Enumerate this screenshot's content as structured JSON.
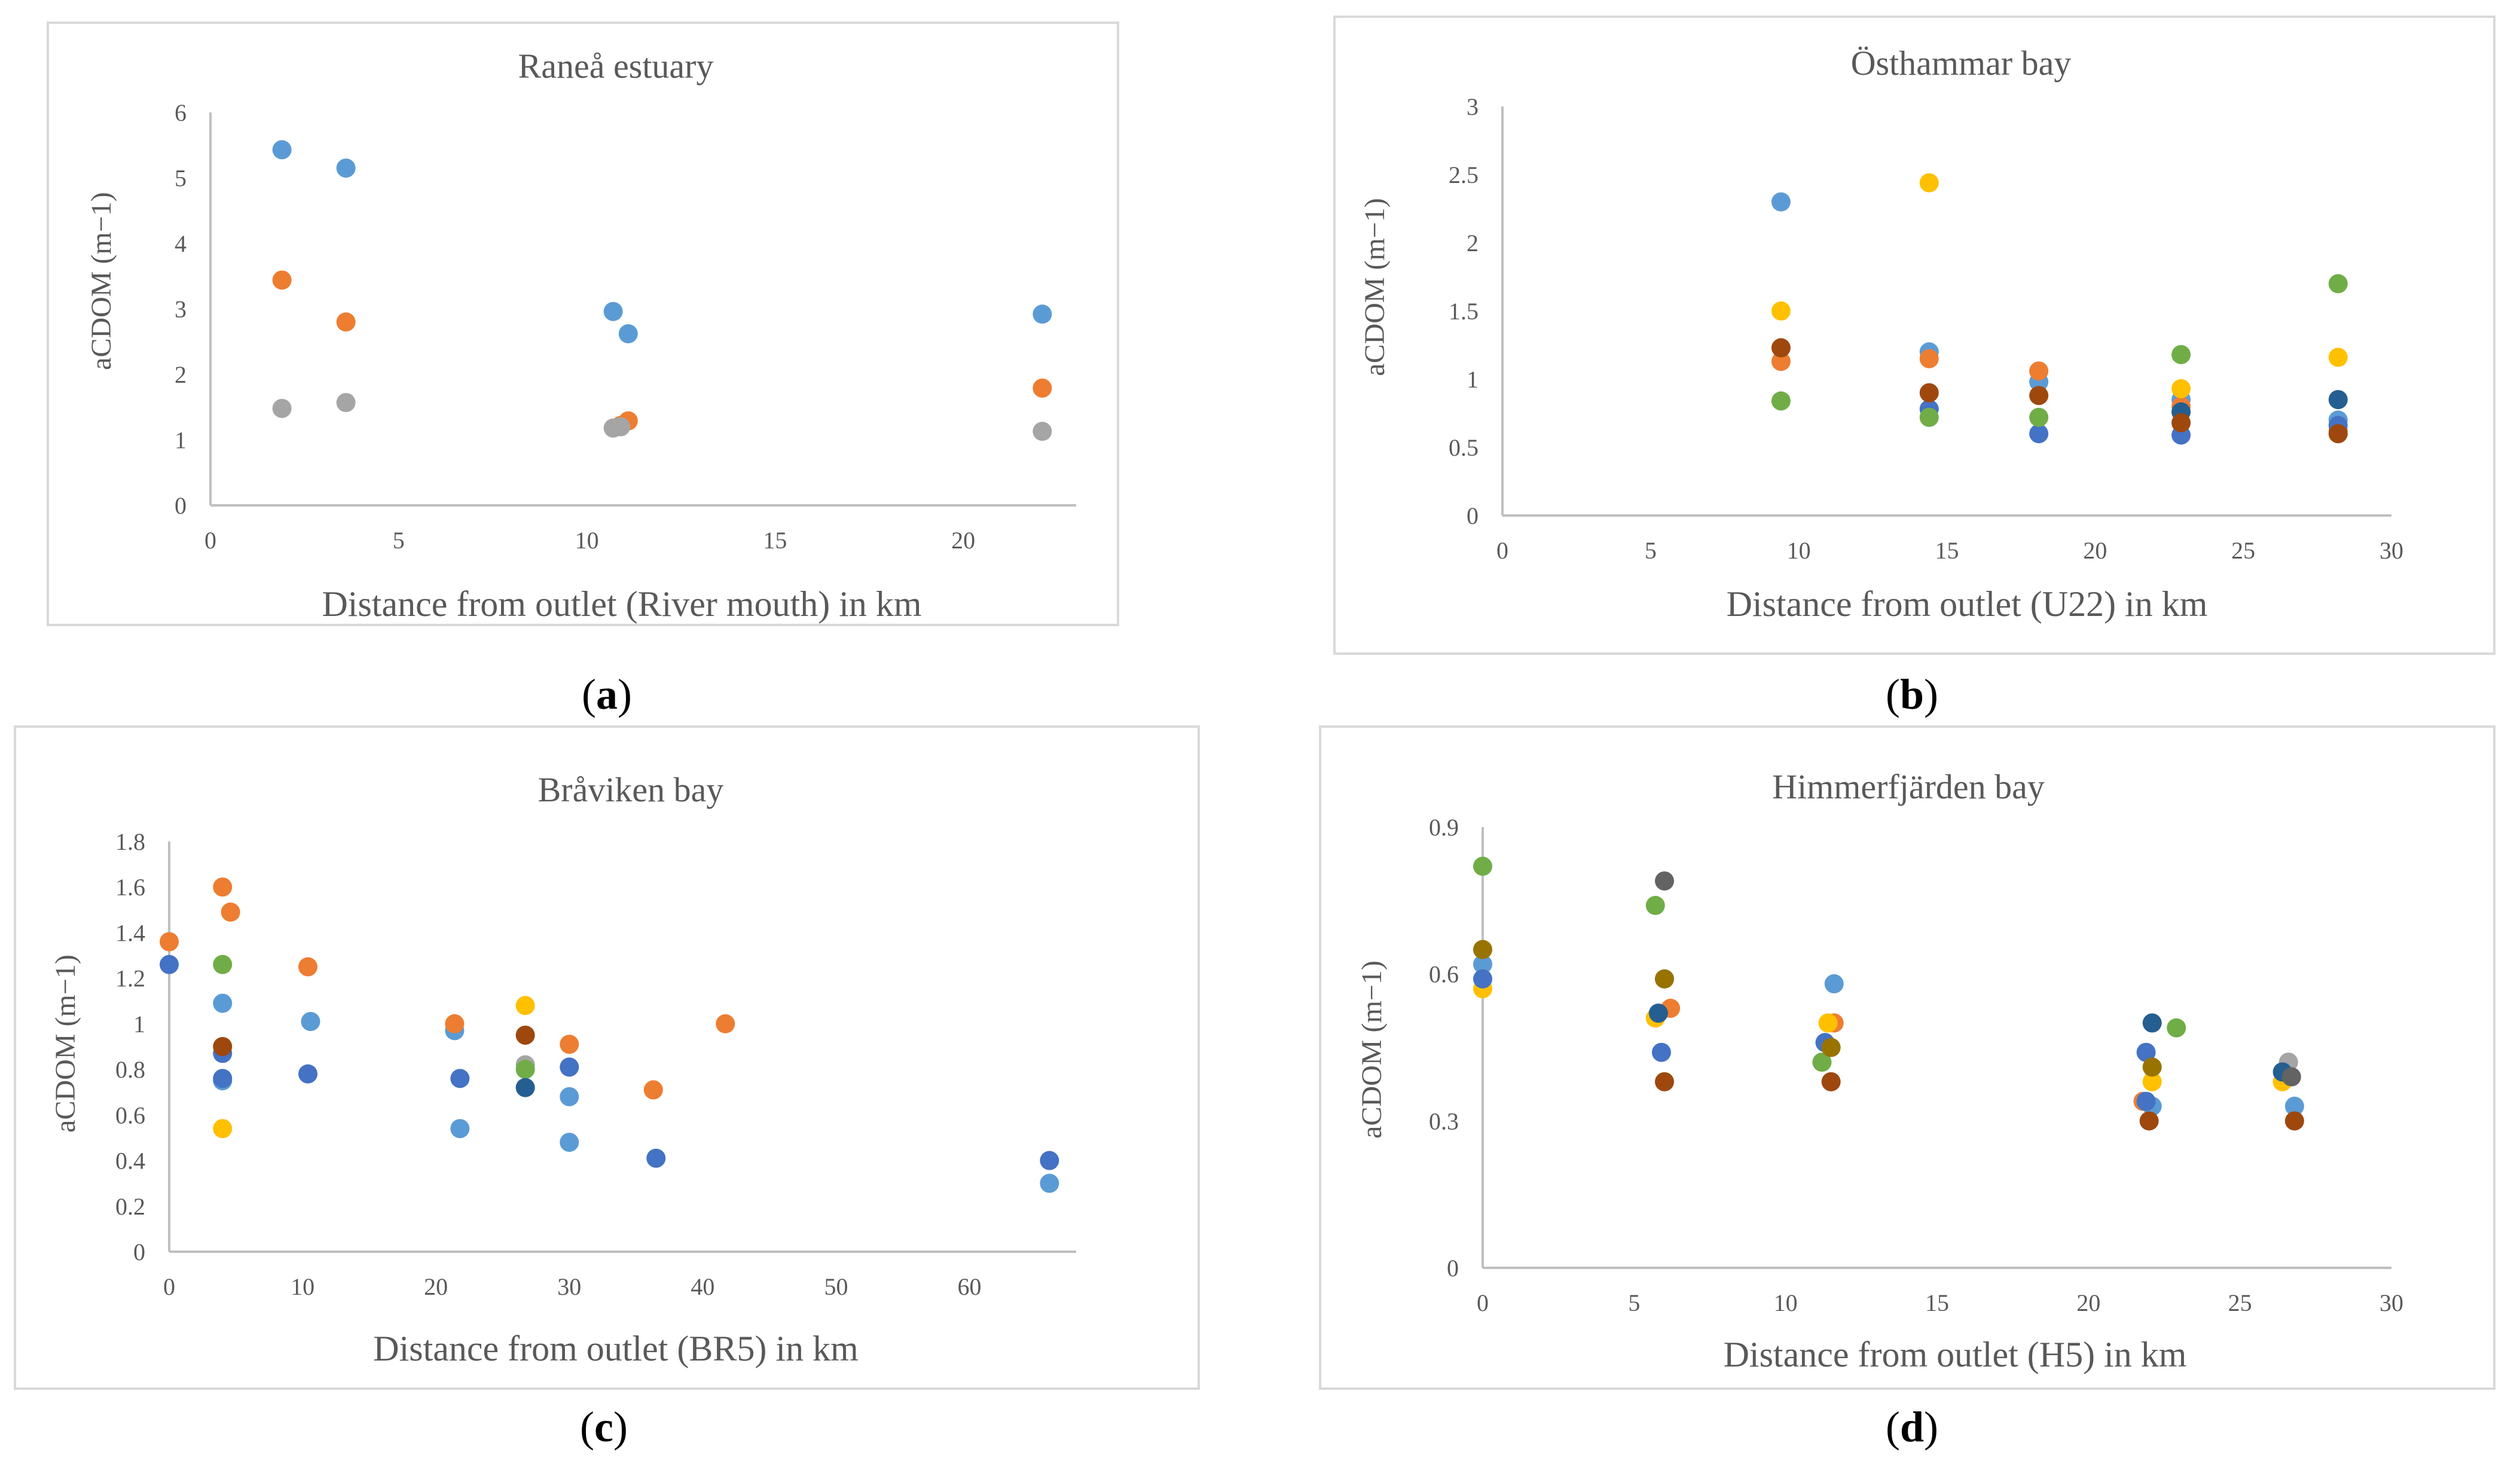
{
  "colors": {
    "series_palette": [
      "#5b9bd5",
      "#ed7d31",
      "#a5a5a5",
      "#ffc000",
      "#4472c4",
      "#70ad47",
      "#255e91",
      "#9e480e",
      "#636363",
      "#997300"
    ]
  },
  "chart_data": [
    {
      "id": "a",
      "type": "scatter",
      "panel_label": "a",
      "title": "Raneå estuary",
      "xlabel": "Distance from outlet (River mouth) in km",
      "ylabel": "aCDOM (m−1)",
      "xlim": [
        0,
        23
      ],
      "ylim": [
        0,
        6
      ],
      "xticks": [
        0,
        5,
        10,
        15,
        20
      ],
      "yticks": [
        0,
        1,
        2,
        3,
        4,
        5,
        6
      ],
      "series": [
        {
          "color": "#5b9bd5",
          "points": [
            [
              1.9,
              5.43
            ],
            [
              3.6,
              5.15
            ],
            [
              10.7,
              2.96
            ],
            [
              11.1,
              2.62
            ],
            [
              22.1,
              2.92
            ]
          ]
        },
        {
          "color": "#ed7d31",
          "points": [
            [
              1.9,
              3.44
            ],
            [
              3.6,
              2.8
            ],
            [
              10.9,
              1.22
            ],
            [
              11.1,
              1.29
            ],
            [
              22.1,
              1.79
            ]
          ]
        },
        {
          "color": "#a5a5a5",
          "points": [
            [
              1.9,
              1.48
            ],
            [
              3.6,
              1.57
            ],
            [
              10.7,
              1.18
            ],
            [
              10.9,
              1.2
            ],
            [
              22.1,
              1.13
            ]
          ]
        }
      ]
    },
    {
      "id": "b",
      "type": "scatter",
      "panel_label": "b",
      "title": "Östhammar bay",
      "xlabel": "Distance from outlet (U22) in km",
      "ylabel": "aCDOM (m−1)",
      "xlim": [
        0,
        30
      ],
      "ylim": [
        0,
        3
      ],
      "xticks": [
        0,
        5,
        10,
        15,
        20,
        25,
        30
      ],
      "yticks": [
        0,
        0.5,
        1,
        1.5,
        2,
        2.5,
        3
      ],
      "series": [
        {
          "color": "#5b9bd5",
          "points": [
            [
              9.4,
              2.3
            ],
            [
              14.4,
              1.2
            ],
            [
              18.1,
              0.98
            ],
            [
              22.9,
              0.85
            ],
            [
              28.2,
              0.7
            ]
          ]
        },
        {
          "color": "#ed7d31",
          "points": [
            [
              9.4,
              1.13
            ],
            [
              14.4,
              1.15
            ],
            [
              18.1,
              1.06
            ],
            [
              22.9,
              0.8
            ],
            [
              28.2,
              0.62
            ]
          ]
        },
        {
          "color": "#ffc000",
          "points": [
            [
              9.4,
              1.5
            ],
            [
              14.4,
              2.44
            ],
            [
              22.9,
              0.93
            ],
            [
              28.2,
              1.16
            ]
          ]
        },
        {
          "color": "#4472c4",
          "points": [
            [
              14.4,
              0.78
            ],
            [
              18.1,
              0.6
            ],
            [
              22.9,
              0.59
            ],
            [
              28.2,
              0.66
            ]
          ]
        },
        {
          "color": "#70ad47",
          "points": [
            [
              9.4,
              0.84
            ],
            [
              14.4,
              0.72
            ],
            [
              18.1,
              0.72
            ],
            [
              22.9,
              1.18
            ],
            [
              28.2,
              1.7
            ]
          ]
        },
        {
          "color": "#255e91",
          "points": [
            [
              22.9,
              0.76
            ],
            [
              28.2,
              0.85
            ]
          ]
        },
        {
          "color": "#9e480e",
          "points": [
            [
              9.4,
              1.23
            ],
            [
              14.4,
              0.9
            ],
            [
              18.1,
              0.88
            ],
            [
              22.9,
              0.68
            ],
            [
              28.2,
              0.6
            ]
          ]
        }
      ]
    },
    {
      "id": "c",
      "type": "scatter",
      "panel_label": "c",
      "title": "Bråviken bay",
      "xlabel": "Distance from outlet (BR5) in km",
      "ylabel": "aCDOM (m−1)",
      "xlim": [
        0,
        68
      ],
      "ylim": [
        0,
        1.8
      ],
      "xticks": [
        0,
        10,
        20,
        30,
        40,
        50,
        60
      ],
      "yticks": [
        0,
        0.2,
        0.4,
        0.6,
        0.8,
        1,
        1.2,
        1.4,
        1.6,
        1.8
      ],
      "series": [
        {
          "color": "#5b9bd5",
          "points": [
            [
              4,
              1.09
            ],
            [
              4,
              0.75
            ],
            [
              10.6,
              1.01
            ],
            [
              21.4,
              0.97
            ],
            [
              21.8,
              0.54
            ],
            [
              30,
              0.68
            ],
            [
              30,
              0.48
            ],
            [
              66,
              0.3
            ]
          ]
        },
        {
          "color": "#ed7d31",
          "points": [
            [
              0,
              1.36
            ],
            [
              4,
              1.6
            ],
            [
              4.6,
              1.49
            ],
            [
              10.4,
              1.25
            ],
            [
              21.4,
              1.0
            ],
            [
              30,
              0.91
            ],
            [
              36.3,
              0.71
            ],
            [
              41.7,
              1.0
            ]
          ]
        },
        {
          "color": "#a5a5a5",
          "points": [
            [
              26.7,
              0.82
            ]
          ]
        },
        {
          "color": "#ffc000",
          "points": [
            [
              4,
              0.54
            ],
            [
              26.7,
              1.08
            ]
          ]
        },
        {
          "color": "#4472c4",
          "points": [
            [
              0,
              1.26
            ],
            [
              4,
              0.87
            ],
            [
              4,
              0.76
            ],
            [
              10.4,
              0.78
            ],
            [
              21.8,
              0.76
            ],
            [
              30,
              0.81
            ],
            [
              36.5,
              0.41
            ],
            [
              66,
              0.4
            ]
          ]
        },
        {
          "color": "#70ad47",
          "points": [
            [
              4,
              1.26
            ],
            [
              26.7,
              0.8
            ]
          ]
        },
        {
          "color": "#255e91",
          "points": [
            [
              26.7,
              0.72
            ]
          ]
        },
        {
          "color": "#9e480e",
          "points": [
            [
              4,
              0.9
            ],
            [
              26.7,
              0.95
            ]
          ]
        }
      ]
    },
    {
      "id": "d",
      "type": "scatter",
      "panel_label": "d",
      "title": "Himmerfjärden bay",
      "xlabel": "Distance from outlet (H5) in km",
      "ylabel": "aCDOM (m−1)",
      "xlim": [
        0,
        30
      ],
      "ylim": [
        0,
        0.9
      ],
      "xticks": [
        0,
        5,
        10,
        15,
        20,
        25,
        30
      ],
      "yticks": [
        0,
        0.3,
        0.6,
        0.9
      ],
      "series": [
        {
          "color": "#5b9bd5",
          "points": [
            [
              0,
              0.62
            ],
            [
              6,
              0.59
            ],
            [
              11.6,
              0.58
            ],
            [
              22.1,
              0.33
            ],
            [
              26.8,
              0.33
            ]
          ]
        },
        {
          "color": "#ed7d31",
          "points": [
            [
              6.2,
              0.53
            ],
            [
              11.6,
              0.5
            ],
            [
              21.8,
              0.34
            ]
          ]
        },
        {
          "color": "#a5a5a5",
          "points": [
            [
              26.6,
              0.42
            ]
          ]
        },
        {
          "color": "#ffc000",
          "points": [
            [
              0,
              0.57
            ],
            [
              5.7,
              0.51
            ],
            [
              11.4,
              0.5
            ],
            [
              22.1,
              0.38
            ],
            [
              26.4,
              0.38
            ]
          ]
        },
        {
          "color": "#4472c4",
          "points": [
            [
              0,
              0.59
            ],
            [
              5.9,
              0.44
            ],
            [
              11.3,
              0.46
            ],
            [
              21.9,
              0.44
            ],
            [
              21.9,
              0.34
            ]
          ]
        },
        {
          "color": "#70ad47",
          "points": [
            [
              0,
              0.82
            ],
            [
              5.7,
              0.74
            ],
            [
              11.2,
              0.42
            ],
            [
              22.9,
              0.49
            ]
          ]
        },
        {
          "color": "#255e91",
          "points": [
            [
              5.8,
              0.52
            ],
            [
              22.1,
              0.5
            ],
            [
              26.4,
              0.4
            ]
          ]
        },
        {
          "color": "#9e480e",
          "points": [
            [
              6,
              0.38
            ],
            [
              11.5,
              0.38
            ],
            [
              22,
              0.3
            ],
            [
              26.8,
              0.3
            ]
          ]
        },
        {
          "color": "#636363",
          "points": [
            [
              6,
              0.79
            ],
            [
              26.7,
              0.39
            ]
          ]
        },
        {
          "color": "#997300",
          "points": [
            [
              0,
              0.65
            ],
            [
              6,
              0.59
            ],
            [
              11.5,
              0.45
            ],
            [
              22.1,
              0.41
            ]
          ]
        }
      ]
    }
  ]
}
